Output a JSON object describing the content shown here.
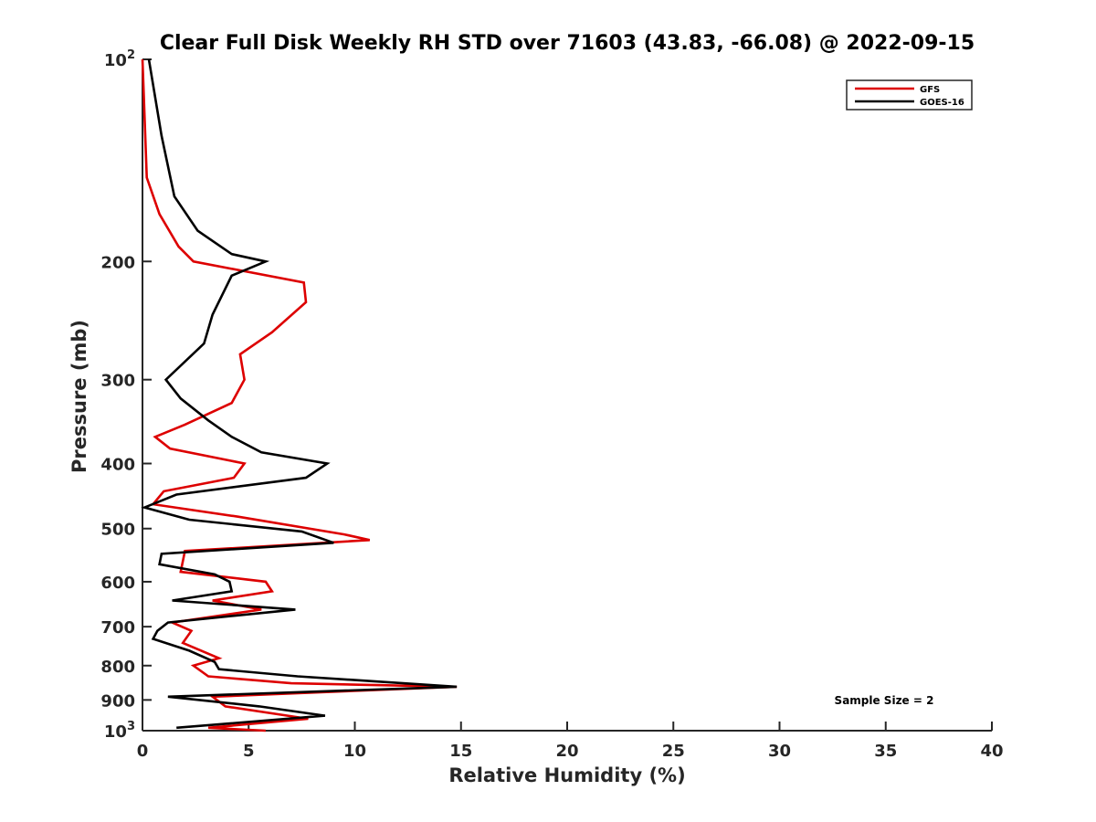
{
  "chart_data": {
    "type": "line",
    "title": "Clear Full Disk Weekly RH STD over 71603 (43.83, -66.08) @ 2022-09-15",
    "xlabel": "Relative Humidity (%)",
    "ylabel": "Pressure (mb)",
    "xlim": [
      0,
      40
    ],
    "ylim": [
      100,
      1000
    ],
    "y_scale": "log",
    "y_reversed": true,
    "grid": false,
    "legend_position": "top-right",
    "x_ticks": [
      "0",
      "5",
      "10",
      "15",
      "20",
      "25",
      "30",
      "35",
      "40"
    ],
    "y_ticks": [
      {
        "value": 100,
        "base": "10",
        "exp": "2"
      },
      {
        "value": 200,
        "label": "200"
      },
      {
        "value": 300,
        "label": "300"
      },
      {
        "value": 400,
        "label": "400"
      },
      {
        "value": 500,
        "label": "500"
      },
      {
        "value": 600,
        "label": "600"
      },
      {
        "value": 700,
        "label": "700"
      },
      {
        "value": 800,
        "label": "800"
      },
      {
        "value": 900,
        "label": "900"
      },
      {
        "value": 1000,
        "base": "10",
        "exp": "3"
      }
    ],
    "annotation": "Sample Size = 2",
    "series": [
      {
        "name": "GFS",
        "color": "#dd0000",
        "points": [
          [
            0.0,
            100
          ],
          [
            0.2,
            150
          ],
          [
            0.8,
            170
          ],
          [
            1.7,
            190
          ],
          [
            2.4,
            200
          ],
          [
            7.6,
            215
          ],
          [
            7.7,
            230
          ],
          [
            6.1,
            255
          ],
          [
            4.6,
            275
          ],
          [
            4.8,
            300
          ],
          [
            4.2,
            325
          ],
          [
            2.0,
            350
          ],
          [
            0.6,
            365
          ],
          [
            1.3,
            380
          ],
          [
            4.8,
            400
          ],
          [
            4.3,
            420
          ],
          [
            1.0,
            440
          ],
          [
            0.5,
            460
          ],
          [
            4.5,
            480
          ],
          [
            9.5,
            510
          ],
          [
            10.7,
            520
          ],
          [
            2.0,
            540
          ],
          [
            1.8,
            580
          ],
          [
            5.8,
            600
          ],
          [
            6.1,
            620
          ],
          [
            3.3,
            640
          ],
          [
            5.6,
            660
          ],
          [
            1.4,
            690
          ],
          [
            2.3,
            710
          ],
          [
            1.9,
            740
          ],
          [
            3.6,
            780
          ],
          [
            2.4,
            800
          ],
          [
            3.1,
            830
          ],
          [
            7.0,
            850
          ],
          [
            14.8,
            860
          ],
          [
            3.3,
            890
          ],
          [
            3.9,
            920
          ],
          [
            7.8,
            960
          ],
          [
            3.1,
            990
          ],
          [
            5.8,
            1000
          ]
        ]
      },
      {
        "name": "GOES-16",
        "color": "#000000",
        "points": [
          [
            0.3,
            100
          ],
          [
            0.9,
            130
          ],
          [
            1.5,
            160
          ],
          [
            2.6,
            180
          ],
          [
            4.2,
            195
          ],
          [
            5.8,
            200
          ],
          [
            4.2,
            210
          ],
          [
            3.3,
            240
          ],
          [
            2.9,
            265
          ],
          [
            1.1,
            300
          ],
          [
            1.8,
            320
          ],
          [
            3.1,
            345
          ],
          [
            4.2,
            365
          ],
          [
            5.6,
            385
          ],
          [
            8.7,
            400
          ],
          [
            7.7,
            420
          ],
          [
            1.6,
            445
          ],
          [
            0.1,
            465
          ],
          [
            2.2,
            485
          ],
          [
            7.5,
            505
          ],
          [
            9.0,
            525
          ],
          [
            0.9,
            545
          ],
          [
            0.8,
            565
          ],
          [
            3.4,
            585
          ],
          [
            4.1,
            600
          ],
          [
            4.2,
            620
          ],
          [
            1.4,
            640
          ],
          [
            7.2,
            660
          ],
          [
            1.2,
            690
          ],
          [
            0.7,
            710
          ],
          [
            0.5,
            730
          ],
          [
            2.2,
            760
          ],
          [
            3.4,
            790
          ],
          [
            3.6,
            810
          ],
          [
            7.3,
            830
          ],
          [
            14.8,
            860
          ],
          [
            1.2,
            890
          ],
          [
            5.5,
            920
          ],
          [
            8.6,
            950
          ],
          [
            1.6,
            990
          ]
        ]
      }
    ]
  }
}
